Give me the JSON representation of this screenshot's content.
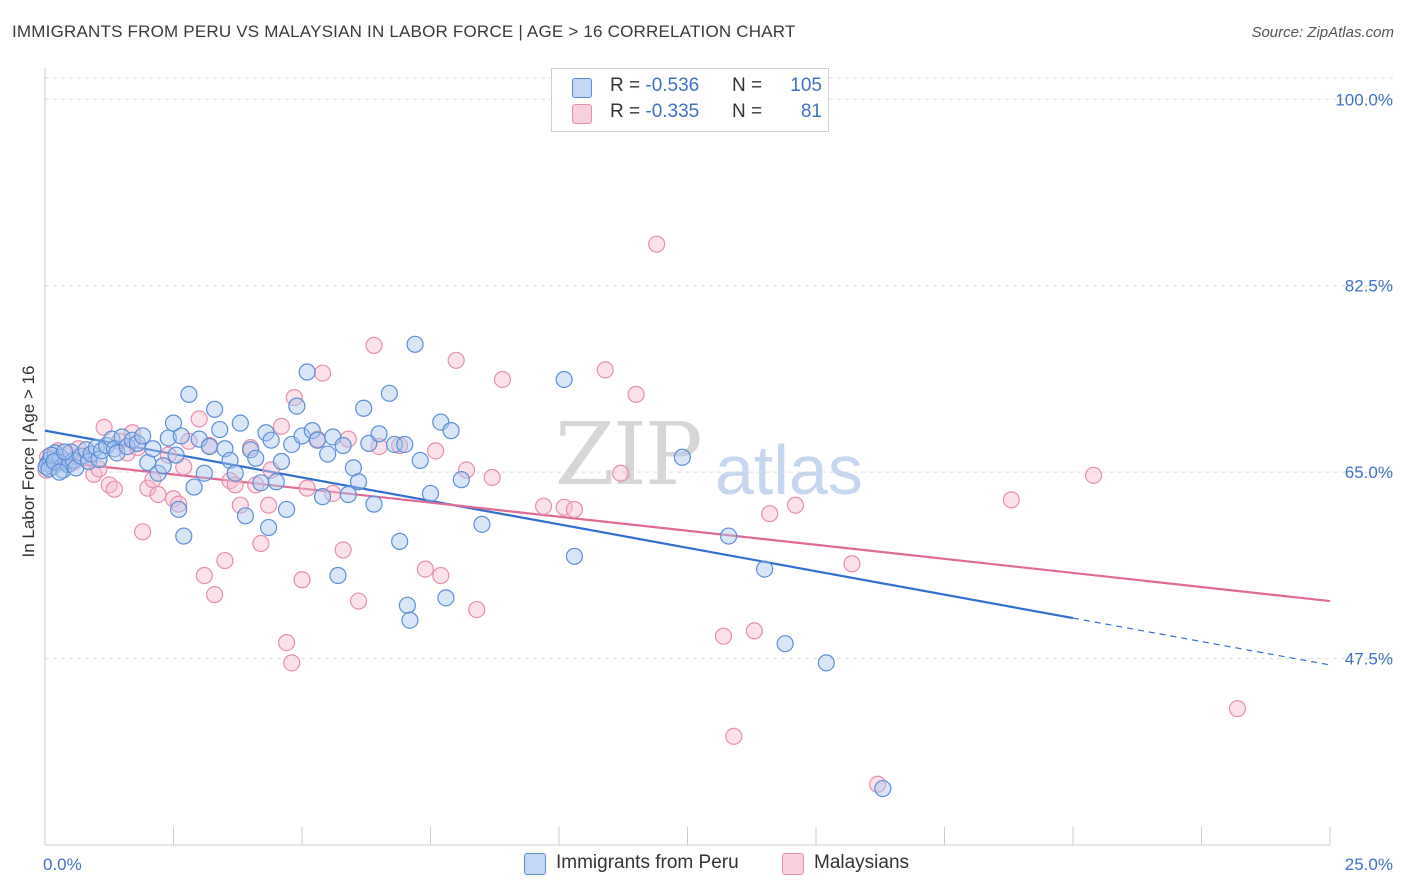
{
  "header": {
    "title": "IMMIGRANTS FROM PERU VS MALAYSIAN IN LABOR FORCE | AGE > 16 CORRELATION CHART",
    "source": "Source: ZipAtlas.com"
  },
  "watermark": {
    "zip": "ZIP",
    "atlas": "atlas"
  },
  "legend": {
    "rows": [
      {
        "r_label": "R = ",
        "r_value": "-0.536",
        "n_label": "N = ",
        "n_value": "105"
      },
      {
        "r_label": "R = ",
        "r_value": "-0.335",
        "n_label": "N = ",
        "n_value": "81"
      }
    ]
  },
  "bottom_legend": [
    "Immigrants from Peru",
    "Malaysians"
  ],
  "colors": {
    "blue_fill": "#a9c8f0",
    "blue_stroke": "#5b8fd6",
    "blue_line": "#2f6fcf",
    "pink_fill": "#f6bccf",
    "pink_stroke": "#e590ae",
    "pink_line": "#e06a96",
    "grid": "#dddddd"
  },
  "chart_data": {
    "type": "scatter",
    "title": "IMMIGRANTS FROM PERU VS MALAYSIAN IN LABOR FORCE | AGE > 16 CORRELATION CHART",
    "xlabel": "",
    "ylabel": "In Labor Force | Age > 16",
    "xlim": [
      0,
      25
    ],
    "ylim": [
      30,
      102
    ],
    "x_tick_labels": [
      "0.0%",
      "25.0%"
    ],
    "y_ticks": [
      47.5,
      65.0,
      82.5,
      100.0
    ],
    "y_tick_labels": [
      "47.5%",
      "65.0%",
      "82.5%",
      "100.0%"
    ],
    "grid": true,
    "legend_placement": "top-center",
    "series": [
      {
        "name": "Immigrants from Peru",
        "color": "#a9c8f0",
        "trend": {
          "x": [
            0,
            20
          ],
          "y": [
            68.9,
            51.3
          ],
          "dashed_to": [
            25,
            46.9
          ]
        },
        "points": [
          [
            0.05,
            65.8
          ],
          [
            0.1,
            66.2
          ],
          [
            0.15,
            65.5
          ],
          [
            0.2,
            66.8
          ],
          [
            0.25,
            65.9
          ],
          [
            0.3,
            66.4
          ],
          [
            0.35,
            65.2
          ],
          [
            0.4,
            66.0
          ],
          [
            0.45,
            65.7
          ],
          [
            0.5,
            66.9
          ],
          [
            0.55,
            66.1
          ],
          [
            0.6,
            65.4
          ],
          [
            0.7,
            66.5
          ],
          [
            0.8,
            67.1
          ],
          [
            0.85,
            66.0
          ],
          [
            0.9,
            66.7
          ],
          [
            1.0,
            67.3
          ],
          [
            1.05,
            66.2
          ],
          [
            1.1,
            67.0
          ],
          [
            1.2,
            67.5
          ],
          [
            1.3,
            68.1
          ],
          [
            1.35,
            67.2
          ],
          [
            1.4,
            66.8
          ],
          [
            1.5,
            68.3
          ],
          [
            1.6,
            67.4
          ],
          [
            1.7,
            68.0
          ],
          [
            1.8,
            67.7
          ],
          [
            1.9,
            68.4
          ],
          [
            2.0,
            65.9
          ],
          [
            2.1,
            67.2
          ],
          [
            2.2,
            64.9
          ],
          [
            2.3,
            65.6
          ],
          [
            2.4,
            68.2
          ],
          [
            2.5,
            69.6
          ],
          [
            2.55,
            66.6
          ],
          [
            2.6,
            61.5
          ],
          [
            2.65,
            68.4
          ],
          [
            2.7,
            59.0
          ],
          [
            2.8,
            72.3
          ],
          [
            2.9,
            63.6
          ],
          [
            3.0,
            68.1
          ],
          [
            3.1,
            64.9
          ],
          [
            3.2,
            67.4
          ],
          [
            3.3,
            70.9
          ],
          [
            3.4,
            69.0
          ],
          [
            3.5,
            67.2
          ],
          [
            3.6,
            66.1
          ],
          [
            3.7,
            64.9
          ],
          [
            3.8,
            69.6
          ],
          [
            3.9,
            60.9
          ],
          [
            4.0,
            67.1
          ],
          [
            4.1,
            66.3
          ],
          [
            4.2,
            64.0
          ],
          [
            4.3,
            68.7
          ],
          [
            4.35,
            59.8
          ],
          [
            4.4,
            68.0
          ],
          [
            4.5,
            64.1
          ],
          [
            4.6,
            66.0
          ],
          [
            4.7,
            61.5
          ],
          [
            4.8,
            67.6
          ],
          [
            4.9,
            71.2
          ],
          [
            5.0,
            68.4
          ],
          [
            5.1,
            74.4
          ],
          [
            5.2,
            68.9
          ],
          [
            5.3,
            68.0
          ],
          [
            5.4,
            62.7
          ],
          [
            5.5,
            66.7
          ],
          [
            5.6,
            68.3
          ],
          [
            5.7,
            55.3
          ],
          [
            5.8,
            67.5
          ],
          [
            5.9,
            62.9
          ],
          [
            6.0,
            65.4
          ],
          [
            6.1,
            64.1
          ],
          [
            6.2,
            71.0
          ],
          [
            6.3,
            67.7
          ],
          [
            6.4,
            62.0
          ],
          [
            6.5,
            68.6
          ],
          [
            6.7,
            72.4
          ],
          [
            6.8,
            67.6
          ],
          [
            6.9,
            58.5
          ],
          [
            7.0,
            67.6
          ],
          [
            7.05,
            52.5
          ],
          [
            7.1,
            51.1
          ],
          [
            7.2,
            77.0
          ],
          [
            7.3,
            66.1
          ],
          [
            7.5,
            63.0
          ],
          [
            7.7,
            69.7
          ],
          [
            7.8,
            53.2
          ],
          [
            7.9,
            68.9
          ],
          [
            8.1,
            64.3
          ],
          [
            8.5,
            60.1
          ],
          [
            10.1,
            73.7
          ],
          [
            10.3,
            57.1
          ],
          [
            12.4,
            66.4
          ],
          [
            13.3,
            59.0
          ],
          [
            14.0,
            55.9
          ],
          [
            14.4,
            48.9
          ],
          [
            15.2,
            47.1
          ],
          [
            16.3,
            35.3
          ],
          [
            0.02,
            65.5
          ],
          [
            0.08,
            65.3
          ],
          [
            0.12,
            66.6
          ],
          [
            0.18,
            66.0
          ],
          [
            0.28,
            65.0
          ],
          [
            0.38,
            66.9
          ]
        ]
      },
      {
        "name": "Malaysians",
        "color": "#f6bccf",
        "trend": {
          "x": [
            0,
            25
          ],
          "y": [
            66.1,
            52.9
          ]
        },
        "points": [
          [
            0.05,
            66.4
          ],
          [
            0.15,
            65.8
          ],
          [
            0.25,
            67.0
          ],
          [
            0.35,
            66.2
          ],
          [
            0.45,
            66.7
          ],
          [
            0.55,
            65.9
          ],
          [
            0.65,
            67.2
          ],
          [
            0.75,
            66.5
          ],
          [
            0.85,
            66.0
          ],
          [
            0.95,
            64.8
          ],
          [
            1.05,
            65.3
          ],
          [
            1.15,
            69.2
          ],
          [
            1.25,
            63.8
          ],
          [
            1.35,
            63.4
          ],
          [
            1.45,
            67.9
          ],
          [
            1.6,
            66.8
          ],
          [
            1.7,
            68.7
          ],
          [
            1.8,
            67.3
          ],
          [
            1.9,
            59.4
          ],
          [
            2.0,
            63.5
          ],
          [
            2.1,
            64.3
          ],
          [
            2.2,
            62.9
          ],
          [
            2.4,
            66.6
          ],
          [
            2.5,
            62.5
          ],
          [
            2.6,
            62.0
          ],
          [
            2.7,
            65.5
          ],
          [
            2.8,
            67.9
          ],
          [
            3.0,
            70.0
          ],
          [
            3.1,
            55.3
          ],
          [
            3.2,
            67.5
          ],
          [
            3.3,
            53.5
          ],
          [
            3.5,
            56.7
          ],
          [
            3.6,
            64.2
          ],
          [
            3.7,
            63.8
          ],
          [
            3.8,
            61.9
          ],
          [
            4.0,
            67.3
          ],
          [
            4.1,
            63.8
          ],
          [
            4.2,
            58.3
          ],
          [
            4.35,
            61.9
          ],
          [
            4.4,
            65.2
          ],
          [
            4.6,
            69.3
          ],
          [
            4.7,
            49.0
          ],
          [
            4.8,
            47.1
          ],
          [
            4.85,
            72.0
          ],
          [
            5.0,
            54.9
          ],
          [
            5.1,
            63.5
          ],
          [
            5.3,
            68.1
          ],
          [
            5.4,
            74.3
          ],
          [
            5.6,
            63.0
          ],
          [
            5.8,
            57.7
          ],
          [
            5.9,
            68.1
          ],
          [
            6.1,
            52.9
          ],
          [
            6.4,
            76.9
          ],
          [
            6.5,
            67.4
          ],
          [
            6.9,
            67.5
          ],
          [
            7.4,
            55.9
          ],
          [
            7.6,
            67.0
          ],
          [
            7.7,
            55.3
          ],
          [
            8.0,
            75.5
          ],
          [
            8.2,
            65.2
          ],
          [
            8.4,
            52.1
          ],
          [
            8.7,
            64.5
          ],
          [
            8.9,
            73.7
          ],
          [
            9.7,
            61.8
          ],
          [
            10.1,
            61.7
          ],
          [
            10.3,
            61.5
          ],
          [
            10.9,
            74.6
          ],
          [
            11.2,
            64.9
          ],
          [
            11.5,
            72.3
          ],
          [
            11.9,
            86.4
          ],
          [
            13.2,
            49.6
          ],
          [
            13.8,
            50.1
          ],
          [
            13.4,
            40.2
          ],
          [
            14.1,
            61.1
          ],
          [
            14.6,
            61.9
          ],
          [
            15.7,
            56.4
          ],
          [
            16.2,
            35.7
          ],
          [
            18.8,
            62.4
          ],
          [
            20.4,
            64.7
          ],
          [
            23.2,
            42.8
          ],
          [
            0.02,
            65.2
          ]
        ]
      }
    ]
  }
}
